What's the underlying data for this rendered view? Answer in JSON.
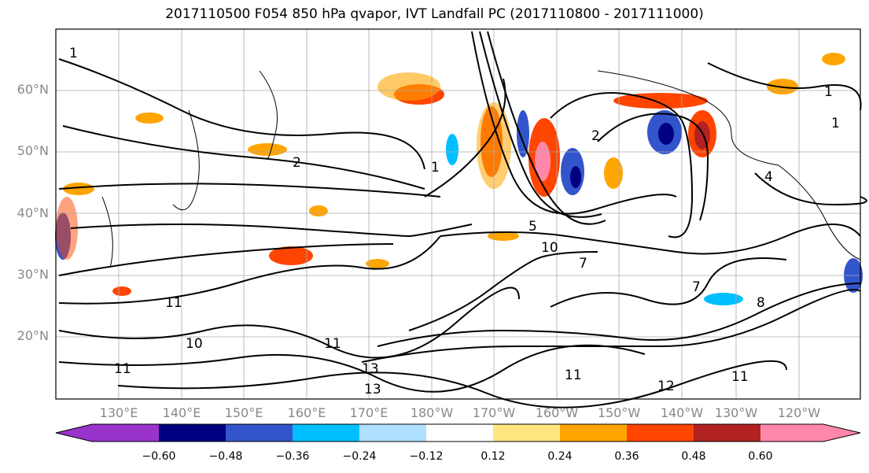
{
  "title": "2017110500 F054 850 hPa qvapor, IVT Landfall PC (2017110800 - 2017111000)",
  "map": {
    "lat_labels": [
      "60°N",
      "50°N",
      "40°N",
      "30°N",
      "20°N"
    ],
    "lon_labels": [
      "130°E",
      "140°E",
      "150°E",
      "160°E",
      "170°E",
      "180°W",
      "170°W",
      "160°W",
      "150°W",
      "140°W",
      "130°W",
      "120°W"
    ],
    "contour_labels": [
      "1",
      "2",
      "1",
      "2",
      "1",
      "1",
      "5",
      "10",
      "7",
      "11",
      "11",
      "11",
      "13",
      "13",
      "11",
      "12",
      "7",
      "8",
      "10",
      "11",
      "4"
    ]
  },
  "colorbar": {
    "ticks": [
      "−0.60",
      "−0.48",
      "−0.36",
      "−0.24",
      "−0.12",
      "0.12",
      "0.24",
      "0.36",
      "0.48",
      "0.60"
    ],
    "colors": [
      "#9933cc",
      "#000080",
      "#3355cc",
      "#00bfff",
      "#b0e0ff",
      "#ffffff",
      "#ffe680",
      "#ffa500",
      "#ff4500",
      "#b22222",
      "#ff88aa"
    ]
  }
}
